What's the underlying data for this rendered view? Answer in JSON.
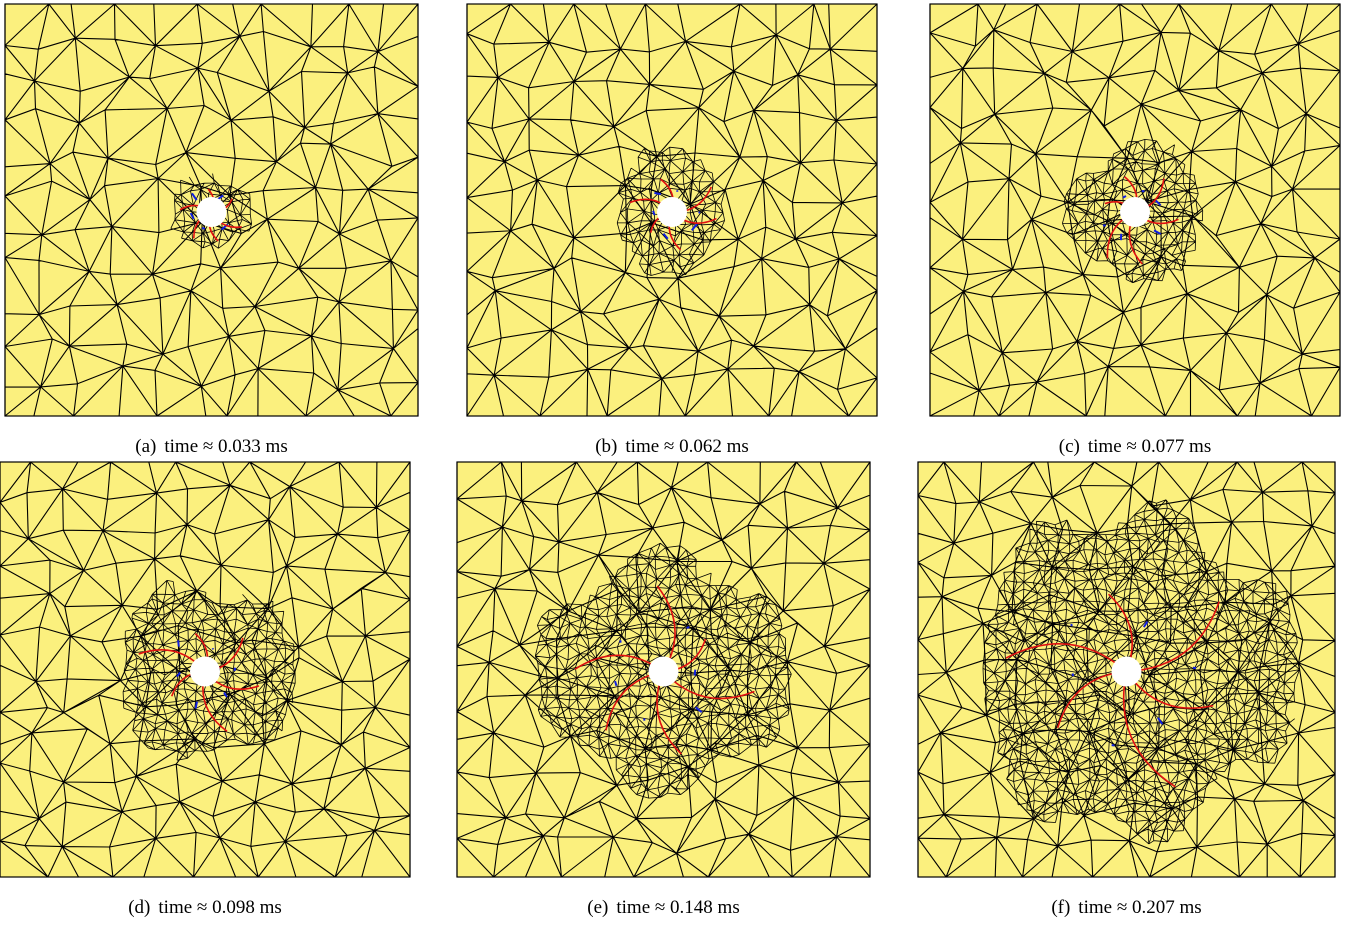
{
  "panels": [
    {
      "label": "(a)",
      "caption": "time ≈ 0.033 ms"
    },
    {
      "label": "(b)",
      "caption": "time ≈ 0.062 ms"
    },
    {
      "label": "(c)",
      "caption": "time ≈ 0.077 ms"
    },
    {
      "label": "(d)",
      "caption": "time ≈ 0.098 ms"
    },
    {
      "label": "(e)",
      "caption": "time ≈ 0.148 ms"
    },
    {
      "label": "(f)",
      "caption": "time ≈ 0.207 ms"
    }
  ]
}
